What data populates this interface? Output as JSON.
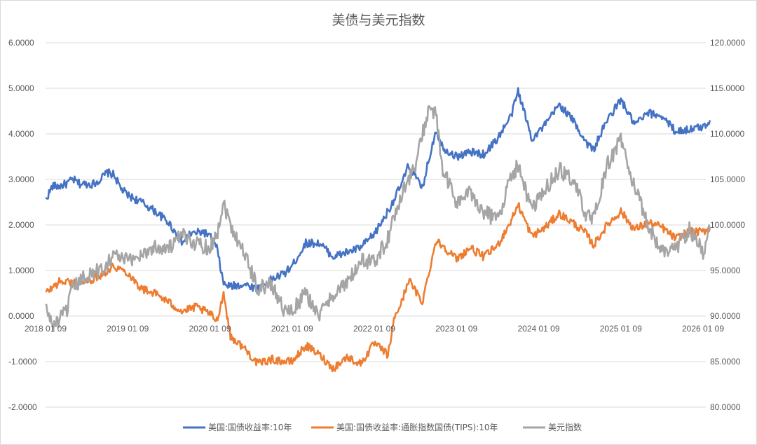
{
  "chart_data": {
    "type": "line",
    "title": "美债与美元指数",
    "x_tick_labels": [
      "2018 01 09",
      "2019 01 09",
      "2020 01 09",
      "2021 01 09",
      "2022 01 09",
      "2023 01 09",
      "2024 01 09",
      "2025 01 09",
      "2026 01 09"
    ],
    "y_left": {
      "range": [
        -2,
        6
      ],
      "tick_labels": [
        "6.0000",
        "5.0000",
        "4.0000",
        "3.0000",
        "2.0000",
        "1.0000",
        "0.0000",
        "-1.0000",
        "-2.0000"
      ]
    },
    "y_right": {
      "range": [
        80,
        120
      ],
      "tick_labels": [
        "120.0000",
        "115.0000",
        "110.0000",
        "105.0000",
        "100.0000",
        "95.0000",
        "90.0000",
        "85.0000",
        "80.0000"
      ]
    },
    "grid": true,
    "legend_position": "bottom",
    "series": [
      {
        "name": "美国:国债收益率:10年",
        "axis": "left",
        "color": "#4472c4",
        "points": [
          [
            "2018-01",
            2.55
          ],
          [
            "2018-02",
            2.85
          ],
          [
            "2018-03",
            2.85
          ],
          [
            "2018-04",
            2.9
          ],
          [
            "2018-05",
            3.0
          ],
          [
            "2018-06",
            2.9
          ],
          [
            "2018-07",
            2.9
          ],
          [
            "2018-08",
            2.9
          ],
          [
            "2018-09",
            3.0
          ],
          [
            "2018-10",
            3.15
          ],
          [
            "2018-11",
            3.1
          ],
          [
            "2018-12",
            2.8
          ],
          [
            "2019-01",
            2.65
          ],
          [
            "2019-03",
            2.5
          ],
          [
            "2019-05",
            2.3
          ],
          [
            "2019-07",
            2.05
          ],
          [
            "2019-09",
            1.6
          ],
          [
            "2019-10",
            1.8
          ],
          [
            "2019-12",
            1.85
          ],
          [
            "2020-01",
            1.75
          ],
          [
            "2020-02",
            1.5
          ],
          [
            "2020-03",
            0.7
          ],
          [
            "2020-04",
            0.65
          ],
          [
            "2020-06",
            0.7
          ],
          [
            "2020-08",
            0.6
          ],
          [
            "2020-10",
            0.8
          ],
          [
            "2020-12",
            0.95
          ],
          [
            "2021-01",
            1.1
          ],
          [
            "2021-03",
            1.6
          ],
          [
            "2021-05",
            1.6
          ],
          [
            "2021-07",
            1.3
          ],
          [
            "2021-09",
            1.4
          ],
          [
            "2021-11",
            1.5
          ],
          [
            "2022-01",
            1.8
          ],
          [
            "2022-03",
            2.3
          ],
          [
            "2022-05",
            2.9
          ],
          [
            "2022-06",
            3.3
          ],
          [
            "2022-08",
            2.8
          ],
          [
            "2022-10",
            4.1
          ],
          [
            "2022-11",
            3.7
          ],
          [
            "2023-01",
            3.5
          ],
          [
            "2023-03",
            3.6
          ],
          [
            "2023-05",
            3.55
          ],
          [
            "2023-07",
            3.9
          ],
          [
            "2023-09",
            4.4
          ],
          [
            "2023-10",
            4.95
          ],
          [
            "2023-12",
            3.9
          ],
          [
            "2024-02",
            4.2
          ],
          [
            "2024-04",
            4.65
          ],
          [
            "2024-06",
            4.3
          ],
          [
            "2024-08",
            3.8
          ],
          [
            "2024-09",
            3.65
          ],
          [
            "2024-11",
            4.3
          ],
          [
            "2025-01",
            4.75
          ],
          [
            "2025-03",
            4.2
          ],
          [
            "2025-05",
            4.45
          ],
          [
            "2025-07",
            4.4
          ],
          [
            "2025-09",
            4.05
          ],
          [
            "2025-11",
            4.1
          ],
          [
            "2026-01",
            4.15
          ],
          [
            "2026-02",
            4.3
          ]
        ]
      },
      {
        "name": "美国:国债收益率:通胀指数国债(TIPS):10年",
        "axis": "left",
        "color": "#ed7d31",
        "points": [
          [
            "2018-01",
            0.5
          ],
          [
            "2018-03",
            0.75
          ],
          [
            "2018-05",
            0.75
          ],
          [
            "2018-07",
            0.75
          ],
          [
            "2018-09",
            0.9
          ],
          [
            "2018-11",
            1.1
          ],
          [
            "2019-01",
            0.95
          ],
          [
            "2019-03",
            0.6
          ],
          [
            "2019-05",
            0.5
          ],
          [
            "2019-07",
            0.3
          ],
          [
            "2019-09",
            0.1
          ],
          [
            "2019-11",
            0.2
          ],
          [
            "2020-01",
            0.05
          ],
          [
            "2020-02",
            -0.1
          ],
          [
            "2020-03",
            0.5
          ],
          [
            "2020-04",
            -0.45
          ],
          [
            "2020-06",
            -0.7
          ],
          [
            "2020-08",
            -1.05
          ],
          [
            "2020-10",
            -0.95
          ],
          [
            "2020-12",
            -1.0
          ],
          [
            "2021-01",
            -1.0
          ],
          [
            "2021-03",
            -0.65
          ],
          [
            "2021-05",
            -0.85
          ],
          [
            "2021-07",
            -1.15
          ],
          [
            "2021-09",
            -0.9
          ],
          [
            "2021-11",
            -1.05
          ],
          [
            "2022-01",
            -0.6
          ],
          [
            "2022-03",
            -0.85
          ],
          [
            "2022-04",
            0.0
          ],
          [
            "2022-05",
            0.3
          ],
          [
            "2022-06",
            0.8
          ],
          [
            "2022-08",
            0.3
          ],
          [
            "2022-10",
            1.65
          ],
          [
            "2022-11",
            1.55
          ],
          [
            "2023-01",
            1.25
          ],
          [
            "2023-03",
            1.5
          ],
          [
            "2023-05",
            1.3
          ],
          [
            "2023-07",
            1.55
          ],
          [
            "2023-09",
            2.1
          ],
          [
            "2023-10",
            2.45
          ],
          [
            "2023-12",
            1.75
          ],
          [
            "2024-02",
            1.95
          ],
          [
            "2024-04",
            2.25
          ],
          [
            "2024-06",
            2.05
          ],
          [
            "2024-08",
            1.8
          ],
          [
            "2024-09",
            1.55
          ],
          [
            "2024-11",
            2.0
          ],
          [
            "2025-01",
            2.3
          ],
          [
            "2025-03",
            1.9
          ],
          [
            "2025-05",
            2.05
          ],
          [
            "2025-07",
            1.95
          ],
          [
            "2025-09",
            1.7
          ],
          [
            "2025-11",
            1.85
          ],
          [
            "2026-01",
            1.85
          ],
          [
            "2026-02",
            1.95
          ]
        ]
      },
      {
        "name": "美元指数",
        "axis": "right",
        "color": "#a5a5a5",
        "points": [
          [
            "2018-01",
            91.0
          ],
          [
            "2018-02",
            89.0
          ],
          [
            "2018-03",
            89.5
          ],
          [
            "2018-04",
            90.5
          ],
          [
            "2018-05",
            93.0
          ],
          [
            "2018-07",
            94.5
          ],
          [
            "2018-09",
            95.0
          ],
          [
            "2018-11",
            96.8
          ],
          [
            "2019-01",
            96.0
          ],
          [
            "2019-03",
            96.8
          ],
          [
            "2019-05",
            97.6
          ],
          [
            "2019-07",
            97.5
          ],
          [
            "2019-09",
            98.8
          ],
          [
            "2019-11",
            98.0
          ],
          [
            "2020-01",
            97.5
          ],
          [
            "2020-02",
            99.0
          ],
          [
            "2020-03",
            102.5
          ],
          [
            "2020-04",
            100.0
          ],
          [
            "2020-06",
            97.0
          ],
          [
            "2020-08",
            93.0
          ],
          [
            "2020-10",
            93.5
          ],
          [
            "2020-12",
            90.5
          ],
          [
            "2021-01",
            90.5
          ],
          [
            "2021-03",
            92.5
          ],
          [
            "2021-05",
            90.0
          ],
          [
            "2021-07",
            92.5
          ],
          [
            "2021-09",
            93.5
          ],
          [
            "2021-11",
            96.0
          ],
          [
            "2022-01",
            96.0
          ],
          [
            "2022-03",
            98.5
          ],
          [
            "2022-05",
            103.5
          ],
          [
            "2022-07",
            106.5
          ],
          [
            "2022-09",
            113.0
          ],
          [
            "2022-10",
            112.0
          ],
          [
            "2022-11",
            106.0
          ],
          [
            "2023-01",
            102.5
          ],
          [
            "2023-03",
            103.5
          ],
          [
            "2023-05",
            101.5
          ],
          [
            "2023-07",
            100.5
          ],
          [
            "2023-09",
            105.5
          ],
          [
            "2023-10",
            106.5
          ],
          [
            "2023-12",
            101.5
          ],
          [
            "2024-02",
            104.0
          ],
          [
            "2024-04",
            106.0
          ],
          [
            "2024-06",
            105.0
          ],
          [
            "2024-08",
            101.0
          ],
          [
            "2024-09",
            100.5
          ],
          [
            "2024-11",
            106.5
          ],
          [
            "2025-01",
            109.5
          ],
          [
            "2025-03",
            104.0
          ],
          [
            "2025-05",
            100.0
          ],
          [
            "2025-07",
            97.0
          ],
          [
            "2025-09",
            97.5
          ],
          [
            "2025-11",
            99.5
          ],
          [
            "2026-01",
            97.0
          ],
          [
            "2026-02",
            99.5
          ]
        ]
      }
    ]
  }
}
